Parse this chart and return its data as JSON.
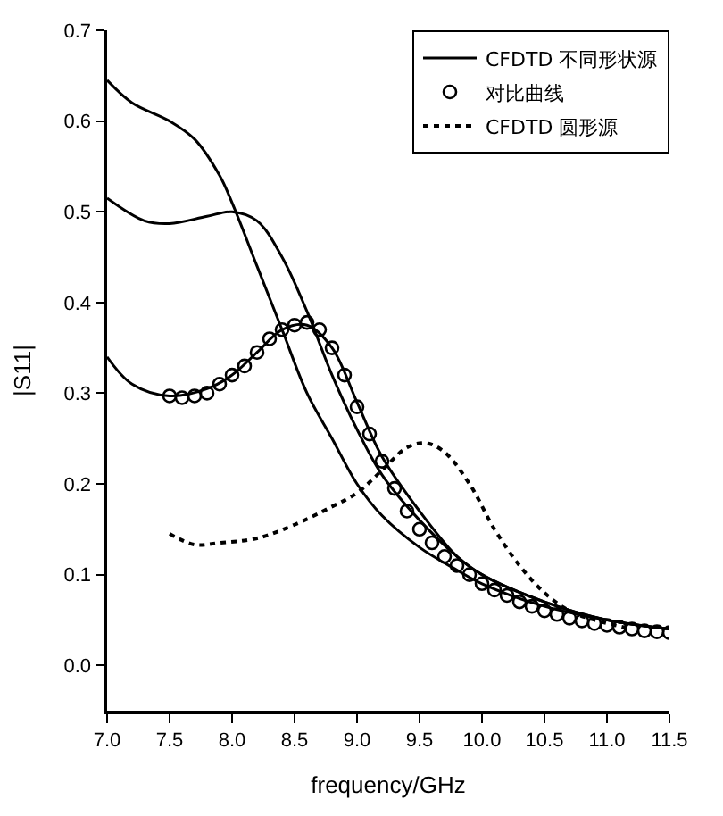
{
  "chart_data": {
    "type": "line",
    "xlabel": "frequency/GHz",
    "ylabel": "|S11|",
    "xlim": [
      7.0,
      11.5
    ],
    "ylim": [
      -0.05,
      0.7
    ],
    "xticks": [
      {
        "value": 7.0,
        "label": "7.0"
      },
      7.5,
      {
        "value": 8.0,
        "label": "8.0"
      },
      8.5,
      {
        "value": 9.0,
        "label": "9.0"
      },
      9.5,
      {
        "value": 10.0,
        "label": "10.0"
      },
      10.5,
      {
        "value": 11.0,
        "label": "11.0"
      },
      11.5
    ],
    "yticks": [
      {
        "value": 0.0,
        "label": "0.0"
      },
      0.1,
      0.2,
      0.3,
      0.4,
      0.5,
      0.6,
      0.7
    ],
    "legend": "top right",
    "series": [
      {
        "name": "CFDTD 不同形状源",
        "color": "#000000",
        "line_style": "solid",
        "marker": "none",
        "x": [
          7.0,
          7.2,
          7.5,
          7.7,
          7.9,
          8.0,
          8.2,
          8.4,
          8.6,
          8.8,
          9.0,
          9.2,
          9.5,
          9.8,
          10.0,
          10.5,
          11.0,
          11.5
        ],
        "values": [
          0.645,
          0.62,
          0.6,
          0.58,
          0.54,
          0.51,
          0.44,
          0.37,
          0.3,
          0.25,
          0.2,
          0.165,
          0.13,
          0.105,
          0.09,
          0.065,
          0.05,
          0.04
        ]
      },
      {
        "color": "#000000",
        "line_style": "solid",
        "marker": "none",
        "x": [
          7.0,
          7.3,
          7.5,
          7.8,
          8.0,
          8.2,
          8.4,
          8.6,
          8.8,
          9.0,
          9.2,
          9.5,
          9.8,
          10.0,
          10.5,
          11.0,
          11.5
        ],
        "values": [
          0.515,
          0.49,
          0.487,
          0.495,
          0.5,
          0.49,
          0.45,
          0.39,
          0.32,
          0.26,
          0.21,
          0.16,
          0.12,
          0.1,
          0.07,
          0.05,
          0.04
        ]
      },
      {
        "color": "#000000",
        "line_style": "solid",
        "marker": "none",
        "x": [
          7.0,
          7.2,
          7.5,
          7.8,
          8.0,
          8.2,
          8.4,
          8.6,
          8.8,
          9.0,
          9.2,
          9.5,
          9.8,
          10.0,
          10.5,
          11.0,
          11.5
        ],
        "values": [
          0.34,
          0.31,
          0.297,
          0.305,
          0.32,
          0.345,
          0.37,
          0.375,
          0.35,
          0.29,
          0.23,
          0.17,
          0.12,
          0.1,
          0.07,
          0.05,
          0.04
        ]
      },
      {
        "name": "对比曲线",
        "color": "#000000",
        "type": "scatter",
        "marker": "circle",
        "x": [
          7.5,
          7.6,
          7.7,
          7.8,
          7.9,
          8.0,
          8.1,
          8.2,
          8.3,
          8.4,
          8.5,
          8.6,
          8.7,
          8.8,
          8.9,
          9.0,
          9.1,
          9.2,
          9.3,
          9.4,
          9.5,
          9.6,
          9.7,
          9.8,
          9.9,
          10.0,
          10.1,
          10.2,
          10.3,
          10.4,
          10.5,
          10.6,
          10.7,
          10.8,
          10.9,
          11.0,
          11.1,
          11.2,
          11.3,
          11.4,
          11.5
        ],
        "values": [
          0.297,
          0.295,
          0.297,
          0.3,
          0.31,
          0.32,
          0.33,
          0.345,
          0.36,
          0.37,
          0.375,
          0.378,
          0.37,
          0.35,
          0.32,
          0.285,
          0.255,
          0.225,
          0.195,
          0.17,
          0.15,
          0.135,
          0.12,
          0.11,
          0.1,
          0.09,
          0.083,
          0.077,
          0.07,
          0.065,
          0.06,
          0.056,
          0.052,
          0.049,
          0.046,
          0.044,
          0.042,
          0.04,
          0.038,
          0.037,
          0.036
        ]
      },
      {
        "name": "CFDTD 圆形源",
        "color": "#000000",
        "line_style": "dotted",
        "marker": "none",
        "x": [
          7.5,
          7.7,
          7.9,
          8.2,
          8.5,
          8.8,
          9.0,
          9.2,
          9.4,
          9.55,
          9.7,
          9.9,
          10.1,
          10.3,
          10.5,
          10.7,
          10.9,
          11.2
        ],
        "values": [
          0.145,
          0.133,
          0.135,
          0.14,
          0.155,
          0.175,
          0.19,
          0.215,
          0.24,
          0.245,
          0.235,
          0.2,
          0.15,
          0.11,
          0.08,
          0.06,
          0.05,
          0.04
        ]
      }
    ]
  }
}
